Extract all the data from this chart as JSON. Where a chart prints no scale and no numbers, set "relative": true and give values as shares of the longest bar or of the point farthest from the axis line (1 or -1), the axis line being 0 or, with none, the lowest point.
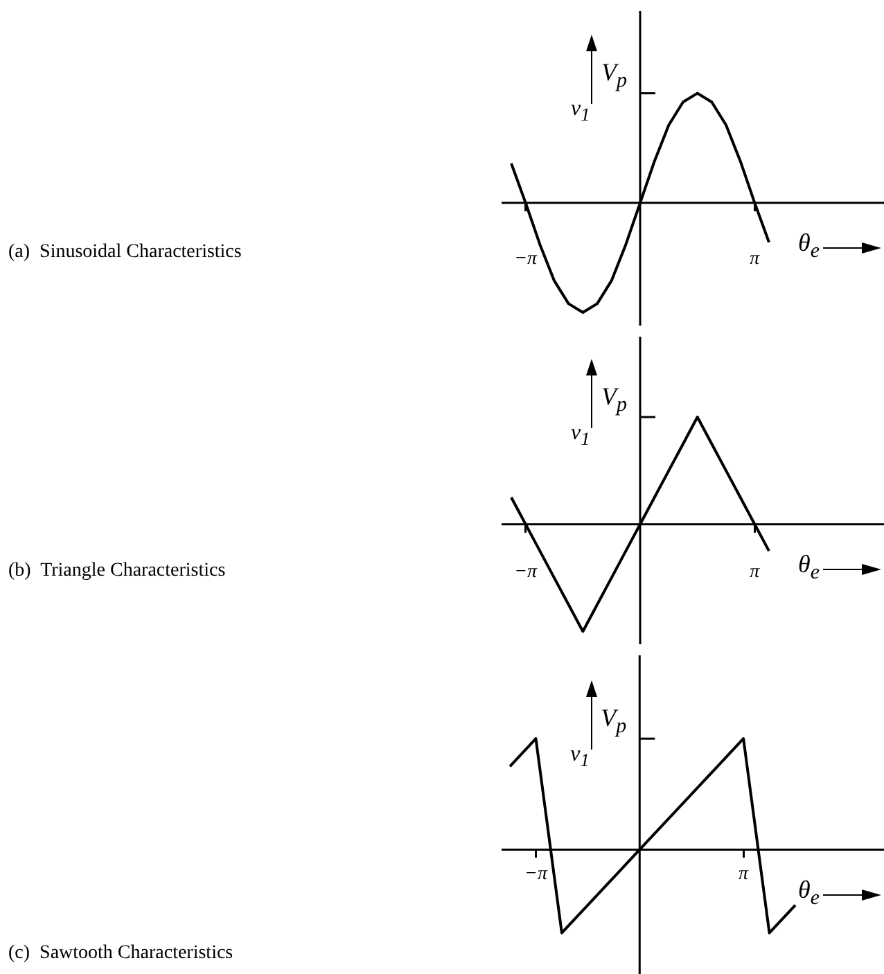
{
  "chart_data": [
    {
      "type": "line",
      "xlabel": "θ$_{e}$",
      "ylabel": "v$_{1}$",
      "annotations": [
        "V$_{p}$",
        "(a)  Sinusoidal Characteristics"
      ],
      "relative": true,
      "color": "#000000",
      "categories": [
        null,
        "−π",
        null,
        null,
        null,
        null,
        null,
        null,
        null,
        null,
        null,
        null,
        null,
        null,
        null,
        null,
        null,
        "π",
        null
      ],
      "values": [
        0.36,
        0,
        -0.38,
        -0.71,
        -0.92,
        -1,
        -0.92,
        -0.71,
        -0.38,
        0,
        0.38,
        0.71,
        0.92,
        1,
        0.92,
        0.71,
        0.38,
        0,
        -0.36
      ]
    },
    {
      "type": "line",
      "xlabel": "θ$_{e}$",
      "ylabel": "v$_{1}$",
      "annotations": [
        "V$_{p}$",
        "(b)  Triangle Characteristics"
      ],
      "relative": true,
      "color": "#000000",
      "categories": [
        null,
        "−π",
        null,
        null,
        null,
        null,
        null,
        null,
        null,
        null,
        null,
        null,
        null,
        null,
        null,
        null,
        null,
        "π",
        null
      ],
      "values": [
        0.25,
        0,
        -0.25,
        -0.5,
        -0.75,
        -1,
        -0.75,
        -0.5,
        -0.25,
        0,
        0.25,
        0.5,
        0.75,
        1,
        0.75,
        0.5,
        0.25,
        0,
        -0.25
      ]
    },
    {
      "type": "line",
      "xlabel": "θ$_{e}$",
      "ylabel": "v$_{1}$",
      "annotations": [
        "V$_{p}$",
        "(c)  Sawtooth Characteristics"
      ],
      "relative": true,
      "color": "#000000",
      "categories": [
        null,
        "−π",
        null,
        null,
        null,
        null,
        null,
        null,
        null,
        "π",
        null,
        null
      ],
      "values": [
        0.75,
        1,
        -0.75,
        -0.5,
        -0.25,
        0,
        0.25,
        0.5,
        0.75,
        1,
        -0.75,
        -0.5
      ]
    }
  ]
}
